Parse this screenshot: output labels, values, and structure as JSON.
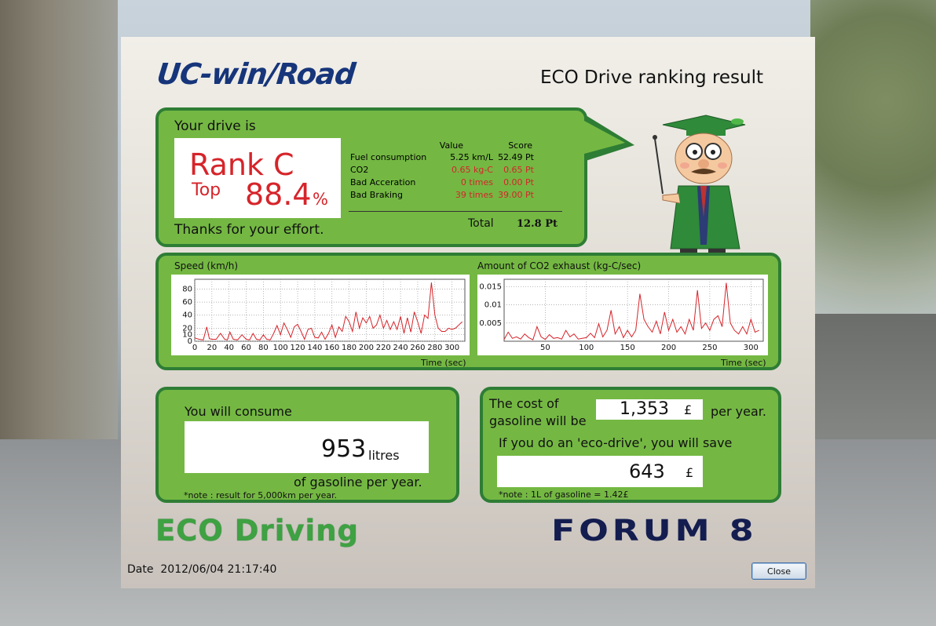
{
  "header": {
    "logo": "UC-win/Road",
    "title": "ECO Drive ranking result"
  },
  "rank": {
    "intro": "Your drive is",
    "rank": "Rank C",
    "top_label": "Top",
    "percent": "88.4",
    "percent_sign": "%",
    "thanks": "Thanks for your effort.",
    "col_value": "Value",
    "col_score": "Score",
    "rows": [
      {
        "name": "Fuel consumption",
        "value": "5.25 km/L",
        "score": "52.49 Pt",
        "highlight": false
      },
      {
        "name": "CO2",
        "value": "0.65 kg-C",
        "score": "0.65 Pt",
        "highlight": true
      },
      {
        "name": "Bad Acceration",
        "value": "0 times",
        "score": "0.00 Pt",
        "highlight": true
      },
      {
        "name": "Bad Braking",
        "value": "39 times",
        "score": "39.00 Pt",
        "highlight": true
      }
    ],
    "total_label": "Total",
    "total_value": "12.8 Pt"
  },
  "charts": {
    "speed_title": "Speed (km/h)",
    "co2_title": "Amount of CO2 exhaust (kg-C/sec)",
    "xlabel": "Time (sec)"
  },
  "chart_data": [
    {
      "type": "line",
      "title": "Speed (km/h)",
      "xlabel": "Time (sec)",
      "ylabel": "",
      "xlim": [
        0,
        315
      ],
      "ylim": [
        0,
        95
      ],
      "xticks": [
        0,
        20,
        40,
        60,
        80,
        100,
        120,
        140,
        160,
        180,
        200,
        220,
        240,
        260,
        280,
        300
      ],
      "yticks": [
        0,
        10,
        20,
        40,
        60,
        80
      ],
      "grid": true,
      "color": "#d6242a",
      "x": [
        0,
        5,
        10,
        14,
        17,
        20,
        25,
        30,
        35,
        38,
        41,
        45,
        50,
        55,
        60,
        64,
        68,
        72,
        76,
        80,
        84,
        88,
        92,
        96,
        100,
        104,
        108,
        112,
        116,
        120,
        124,
        128,
        132,
        136,
        140,
        144,
        148,
        152,
        156,
        160,
        164,
        168,
        172,
        176,
        180,
        184,
        188,
        192,
        196,
        200,
        204,
        208,
        212,
        216,
        220,
        224,
        228,
        232,
        236,
        240,
        244,
        248,
        252,
        256,
        260,
        264,
        268,
        272,
        276,
        280,
        284,
        288,
        292,
        296,
        300,
        304,
        308,
        312
      ],
      "values": [
        5,
        3,
        2,
        22,
        4,
        3,
        3,
        12,
        3,
        2,
        14,
        3,
        2,
        10,
        3,
        2,
        12,
        3,
        2,
        10,
        3,
        2,
        12,
        24,
        10,
        28,
        18,
        6,
        22,
        26,
        15,
        3,
        18,
        20,
        6,
        5,
        14,
        3,
        12,
        25,
        6,
        22,
        15,
        38,
        30,
        15,
        45,
        20,
        36,
        28,
        38,
        20,
        25,
        40,
        20,
        32,
        18,
        30,
        18,
        38,
        12,
        36,
        14,
        45,
        30,
        12,
        40,
        35,
        90,
        40,
        20,
        15,
        15,
        20,
        18,
        20,
        25,
        30
      ]
    },
    {
      "type": "line",
      "title": "Amount of CO2 exhaust (kg-C/sec)",
      "xlabel": "Time (sec)",
      "ylabel": "",
      "xlim": [
        0,
        315
      ],
      "ylim": [
        0,
        0.017
      ],
      "xticks": [
        50,
        100,
        150,
        200,
        250,
        300
      ],
      "yticks": [
        0.005,
        0.01,
        0.015
      ],
      "grid": true,
      "color": "#d6242a",
      "x": [
        0,
        5,
        10,
        15,
        20,
        25,
        30,
        35,
        40,
        45,
        50,
        55,
        60,
        65,
        70,
        75,
        80,
        85,
        90,
        95,
        100,
        105,
        110,
        115,
        120,
        125,
        130,
        135,
        140,
        145,
        150,
        155,
        160,
        165,
        170,
        175,
        180,
        185,
        190,
        195,
        200,
        205,
        210,
        215,
        220,
        225,
        230,
        235,
        240,
        245,
        250,
        255,
        260,
        265,
        270,
        275,
        280,
        285,
        290,
        295,
        300,
        305,
        310
      ],
      "values": [
        0.0005,
        0.0025,
        0.0008,
        0.0012,
        0.0006,
        0.002,
        0.001,
        0.0004,
        0.004,
        0.0012,
        0.0005,
        0.0018,
        0.0008,
        0.001,
        0.0006,
        0.003,
        0.0012,
        0.002,
        0.0006,
        0.0008,
        0.001,
        0.0022,
        0.001,
        0.0048,
        0.0012,
        0.003,
        0.0085,
        0.002,
        0.004,
        0.001,
        0.003,
        0.0012,
        0.003,
        0.013,
        0.006,
        0.004,
        0.0025,
        0.0055,
        0.002,
        0.008,
        0.003,
        0.006,
        0.0025,
        0.004,
        0.002,
        0.006,
        0.003,
        0.014,
        0.0035,
        0.005,
        0.003,
        0.006,
        0.007,
        0.004,
        0.016,
        0.005,
        0.003,
        0.002,
        0.004,
        0.002,
        0.006,
        0.0025,
        0.003
      ]
    }
  ],
  "consume": {
    "label": "You will consume",
    "value": "953",
    "unit": "litres",
    "suffix": "of gasoline per year.",
    "note": "*note : result for 5,000km per year."
  },
  "cost": {
    "label_line1": "The cost of",
    "label_line2": "gasoline will be",
    "value": "1,353",
    "currency": "£",
    "per_year": "per year.",
    "eco_label": "If you do an 'eco-drive', you will save",
    "save_value": "643",
    "save_currency": "£",
    "note": "*note : 1L of gasoline = 1.42£"
  },
  "footer": {
    "eco_logo": "ECO Driving",
    "forum_logo": "FORUM 8",
    "date_label": "Date",
    "date_value": "2012/06/04 21:17:40",
    "close_label": "Close"
  }
}
